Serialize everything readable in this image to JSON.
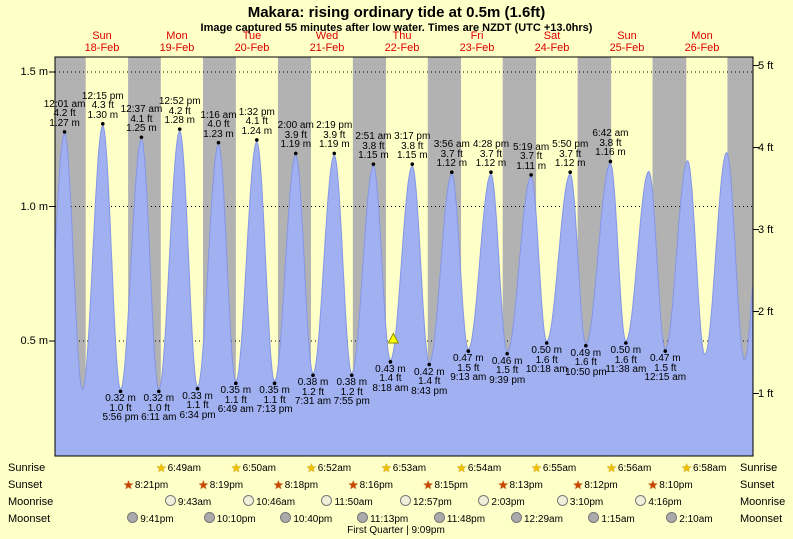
{
  "title": "Makara: rising  ordinary tide at 0.5m (1.6ft)",
  "subtitle": "Image captured 55 minutes after low water. Times are NZDT (UTC +13.0hrs)",
  "colors": {
    "day_background": "#ffffc8",
    "night_band": "#b2b2b2",
    "tide_fill": "#a0b0f0",
    "tide_edge": "#8496e6",
    "day_label_red": "#dd0000",
    "marker_yellow": "#ffff00"
  },
  "days": [
    {
      "name": "Sun",
      "date": "18-Feb",
      "noon_t": 12
    },
    {
      "name": "Mon",
      "date": "19-Feb",
      "noon_t": 36
    },
    {
      "name": "Tue",
      "date": "20-Feb",
      "noon_t": 60
    },
    {
      "name": "Wed",
      "date": "21-Feb",
      "noon_t": 84
    },
    {
      "name": "Thu",
      "date": "22-Feb",
      "noon_t": 108
    },
    {
      "name": "Fri",
      "date": "23-Feb",
      "noon_t": 132
    },
    {
      "name": "Sat",
      "date": "24-Feb",
      "noon_t": 156
    },
    {
      "name": "Sun",
      "date": "25-Feb",
      "noon_t": 180
    },
    {
      "name": "Mon",
      "date": "26-Feb",
      "noon_t": 204
    }
  ],
  "chart_data": {
    "type": "area",
    "title": "Makara: rising  ordinary tide at 0.5m (1.6ft)",
    "x_unit": "t = hours since Feb 18 00:00 NZDT",
    "ylabel_left": "m",
    "ylabel_right": "ft",
    "left_ticks": [
      {
        "m": 0.5,
        "label": "0.5 m"
      },
      {
        "m": 1.0,
        "label": "1.0 m"
      },
      {
        "m": 1.5,
        "label": "1.5 m"
      }
    ],
    "right_ticks": [
      {
        "m": 0.3048,
        "label": "1 ft"
      },
      {
        "m": 0.6096,
        "label": "2 ft"
      },
      {
        "m": 0.9144,
        "label": "3 ft"
      },
      {
        "m": 1.2192,
        "label": "4 ft"
      },
      {
        "m": 1.524,
        "label": "5 ft"
      }
    ],
    "tides": [
      {
        "t": -6.3,
        "h": 0.33,
        "type": "low"
      },
      {
        "t": 0.02,
        "h": 1.27,
        "type": "high",
        "labels": [
          "12:01 am",
          "4.2 ft",
          "1.27 m"
        ]
      },
      {
        "t": 5.75,
        "h": 0.32,
        "type": "low"
      },
      {
        "t": 12.25,
        "h": 1.3,
        "type": "high",
        "labels": [
          "12:15 pm",
          "4.3 ft",
          "1.30 m"
        ]
      },
      {
        "t": 17.93,
        "h": 0.32,
        "type": "low",
        "labels": [
          "0.32 m",
          "1.0 ft",
          "5:56 pm"
        ]
      },
      {
        "t": 24.62,
        "h": 1.25,
        "type": "high",
        "labels": [
          "12:37 am",
          "4.1 ft",
          "1.25 m"
        ]
      },
      {
        "t": 30.18,
        "h": 0.32,
        "type": "low",
        "labels": [
          "0.32 m",
          "1.0 ft",
          "6:11 am"
        ]
      },
      {
        "t": 36.87,
        "h": 1.28,
        "type": "high",
        "labels": [
          "12:52 pm",
          "4.2 ft",
          "1.28 m"
        ]
      },
      {
        "t": 42.57,
        "h": 0.33,
        "type": "low",
        "labels": [
          "0.33 m",
          "1.1 ft",
          "6:34 pm"
        ]
      },
      {
        "t": 49.27,
        "h": 1.23,
        "type": "high",
        "labels": [
          "1:16 am",
          "4.0 ft",
          "1.23 m"
        ]
      },
      {
        "t": 54.82,
        "h": 0.35,
        "type": "low",
        "labels": [
          "0.35 m",
          "1.1 ft",
          "6:49 am"
        ]
      },
      {
        "t": 61.53,
        "h": 1.24,
        "type": "high",
        "labels": [
          "1:32 pm",
          "4.1 ft",
          "1.24 m"
        ]
      },
      {
        "t": 67.22,
        "h": 0.35,
        "type": "low",
        "labels": [
          "0.35 m",
          "1.1 ft",
          "7:13 pm"
        ]
      },
      {
        "t": 74.0,
        "h": 1.19,
        "type": "high",
        "labels": [
          "2:00 am",
          "3.9 ft",
          "1.19 m"
        ]
      },
      {
        "t": 79.52,
        "h": 0.38,
        "type": "low",
        "labels": [
          "0.38 m",
          "1.2 ft",
          "7:31 am"
        ]
      },
      {
        "t": 86.32,
        "h": 1.19,
        "type": "high",
        "labels": [
          "2:19 pm",
          "3.9 ft",
          "1.19 m"
        ]
      },
      {
        "t": 91.92,
        "h": 0.38,
        "type": "low",
        "labels": [
          "0.38 m",
          "1.2 ft",
          "7:55 pm"
        ]
      },
      {
        "t": 98.85,
        "h": 1.15,
        "type": "high",
        "labels": [
          "2:51 am",
          "3.8 ft",
          "1.15 m"
        ]
      },
      {
        "t": 104.3,
        "h": 0.43,
        "type": "low",
        "labels": [
          "0.43 m",
          "1.4 ft",
          "8:18 am"
        ]
      },
      {
        "t": 111.28,
        "h": 1.15,
        "type": "high",
        "labels": [
          "3:17 pm",
          "3.8 ft",
          "1.15 m"
        ]
      },
      {
        "t": 116.72,
        "h": 0.42,
        "type": "low",
        "labels": [
          "0.42 m",
          "1.4 ft",
          "8:43 pm"
        ]
      },
      {
        "t": 123.93,
        "h": 1.12,
        "type": "high",
        "labels": [
          "3:56 am",
          "3.7 ft",
          "1.12 m"
        ]
      },
      {
        "t": 129.22,
        "h": 0.47,
        "type": "low",
        "labels": [
          "0.47 m",
          "1.5 ft",
          "9:13 am"
        ]
      },
      {
        "t": 136.47,
        "h": 1.12,
        "type": "high",
        "labels": [
          "4:28 pm",
          "3.7 ft",
          "1.12 m"
        ]
      },
      {
        "t": 141.65,
        "h": 0.46,
        "type": "low",
        "labels": [
          "0.46 m",
          "1.5 ft",
          "9:39 pm"
        ]
      },
      {
        "t": 149.32,
        "h": 1.11,
        "type": "high",
        "labels": [
          "5:19 am",
          "3.7 ft",
          "1.11 m"
        ]
      },
      {
        "t": 154.3,
        "h": 0.5,
        "type": "low",
        "labels": [
          "0.50 m",
          "1.6 ft",
          "10:18 am"
        ]
      },
      {
        "t": 161.83,
        "h": 1.12,
        "type": "high",
        "labels": [
          "5:50 pm",
          "3.7 ft",
          "1.12 m"
        ]
      },
      {
        "t": 166.83,
        "h": 0.49,
        "type": "low",
        "labels": [
          "0.49 m",
          "1.6 ft",
          "10:50 pm"
        ]
      },
      {
        "t": 174.7,
        "h": 1.16,
        "type": "high",
        "labels": [
          "6:42 am",
          "3.8 ft",
          "1.16 m"
        ]
      },
      {
        "t": 179.63,
        "h": 0.5,
        "type": "low",
        "labels": [
          "0.50 m",
          "1.6 ft",
          "11:38 am"
        ]
      },
      {
        "t": 187.0,
        "h": 1.13,
        "type": "high"
      },
      {
        "t": 192.25,
        "h": 0.47,
        "type": "low",
        "labels": [
          "0.47 m",
          "1.5 ft",
          "12:15 am"
        ]
      },
      {
        "t": 199.4,
        "h": 1.17,
        "type": "high"
      },
      {
        "t": 204.9,
        "h": 0.45,
        "type": "low"
      },
      {
        "t": 211.9,
        "h": 1.2,
        "type": "high"
      },
      {
        "t": 217.6,
        "h": 0.43,
        "type": "low"
      },
      {
        "t": 223.9,
        "h": 1.2,
        "type": "high"
      }
    ],
    "night_spans": [
      [
        -3.1,
        6.78
      ],
      [
        20.35,
        30.82
      ],
      [
        44.32,
        54.83
      ],
      [
        68.3,
        78.87
      ],
      [
        92.27,
        102.88
      ],
      [
        116.25,
        126.9
      ],
      [
        140.22,
        150.92
      ],
      [
        164.2,
        174.93
      ],
      [
        188.17,
        198.97
      ],
      [
        212.13,
        220.4
      ]
    ],
    "now_marker": {
      "t": 105.22,
      "h": 0.5
    }
  },
  "astro": {
    "rows": [
      {
        "label": "Sunrise",
        "icon": "sunrise-star",
        "color": "#f2c200",
        "events": [
          {
            "t": 30.82,
            "time": "6:49am"
          },
          {
            "t": 54.83,
            "time": "6:50am"
          },
          {
            "t": 78.87,
            "time": "6:52am"
          },
          {
            "t": 102.88,
            "time": "6:53am"
          },
          {
            "t": 126.9,
            "time": "6:54am"
          },
          {
            "t": 150.92,
            "time": "6:55am"
          },
          {
            "t": 174.93,
            "time": "6:56am"
          },
          {
            "t": 198.97,
            "time": "6:58am"
          }
        ]
      },
      {
        "label": "Sunset",
        "icon": "sunset-star",
        "color": "#cc4400",
        "events": [
          {
            "t": 20.35,
            "time": "8:21pm"
          },
          {
            "t": 44.32,
            "time": "8:19pm"
          },
          {
            "t": 68.3,
            "time": "8:18pm"
          },
          {
            "t": 92.27,
            "time": "8:16pm"
          },
          {
            "t": 116.25,
            "time": "8:15pm"
          },
          {
            "t": 140.22,
            "time": "8:13pm"
          },
          {
            "t": 164.2,
            "time": "8:12pm"
          },
          {
            "t": 188.17,
            "time": "8:10pm"
          }
        ]
      },
      {
        "label": "Moonrise",
        "icon": "moonrise-circle",
        "fill": "#f0f0da",
        "events": [
          {
            "t": 33.72,
            "time": "9:43am"
          },
          {
            "t": 58.77,
            "time": "10:46am"
          },
          {
            "t": 83.83,
            "time": "11:50am"
          },
          {
            "t": 108.95,
            "time": "12:57pm"
          },
          {
            "t": 134.05,
            "time": "2:03pm"
          },
          {
            "t": 159.17,
            "time": "3:10pm"
          },
          {
            "t": 184.27,
            "time": "4:16pm"
          }
        ]
      },
      {
        "label": "Moonset",
        "icon": "moonset-circle",
        "fill": "#aaaaaa",
        "events": [
          {
            "t": 21.68,
            "time": "9:41pm"
          },
          {
            "t": 46.17,
            "time": "10:10pm"
          },
          {
            "t": 70.67,
            "time": "10:40pm"
          },
          {
            "t": 95.22,
            "time": "11:13pm"
          },
          {
            "t": 119.8,
            "time": "11:48pm"
          },
          {
            "t": 144.48,
            "time": "12:29am"
          },
          {
            "t": 169.25,
            "time": "1:15am"
          },
          {
            "t": 194.17,
            "time": "2:10am"
          }
        ]
      }
    ],
    "moon_phase": "First Quarter | 9:09pm"
  }
}
